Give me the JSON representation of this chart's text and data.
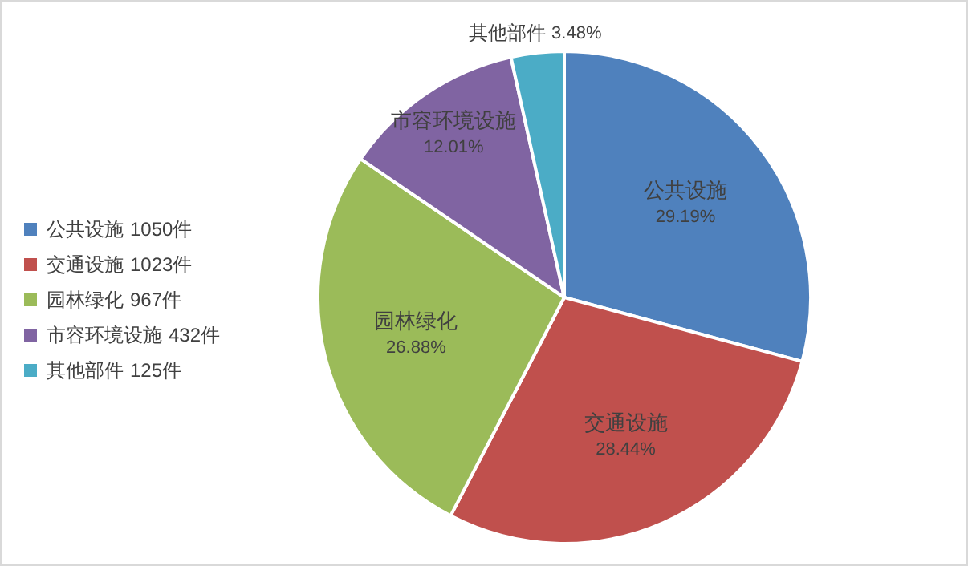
{
  "chart_data": {
    "type": "pie",
    "categories": [
      "公共设施",
      "交通设施",
      "园林绿化",
      "市容环境设施",
      "其他部件"
    ],
    "values": [
      1050,
      1023,
      967,
      432,
      125
    ],
    "value_labels": [
      "1050件",
      "1023件",
      "967件",
      "432件",
      "125件"
    ],
    "colors": [
      "#4f81bd",
      "#c0504d",
      "#9bbb59",
      "#8064a2",
      "#4bacc6"
    ],
    "annotations": [
      "29.19%",
      "28.44%",
      "26.88%",
      "12.01%",
      "3.48%"
    ],
    "legend": "left"
  }
}
